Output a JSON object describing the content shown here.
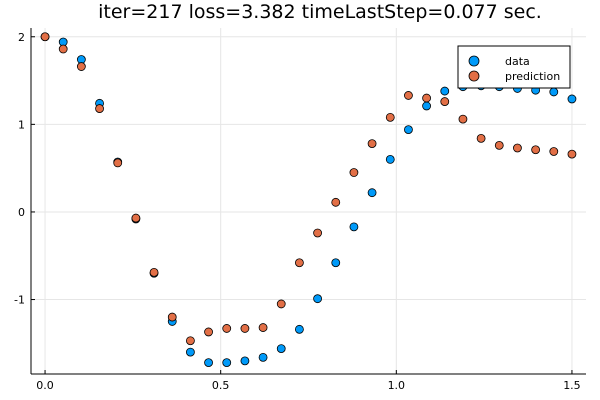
{
  "chart_data": {
    "type": "scatter",
    "title": "iter=217  loss=3.382 timeLastStep=0.077 sec.",
    "xlabel": "",
    "ylabel": "",
    "xlim": [
      -0.04,
      1.54
    ],
    "ylim": [
      -1.85,
      2.1
    ],
    "xticks": [
      0.0,
      0.5,
      1.0,
      1.5
    ],
    "xtick_labels": [
      "0.0",
      "0.5",
      "1.0",
      "1.5"
    ],
    "yticks": [
      2,
      1,
      0,
      -1
    ],
    "ytick_labels": [
      "2",
      "1",
      "0",
      "-1"
    ],
    "grid": true,
    "legend_position": "top-right",
    "x": [
      0.0,
      0.0517,
      0.1034,
      0.1552,
      0.2069,
      0.2586,
      0.3103,
      0.3621,
      0.4138,
      0.4655,
      0.5172,
      0.569,
      0.6207,
      0.6724,
      0.7241,
      0.7759,
      0.8276,
      0.8793,
      0.931,
      0.9828,
      1.0345,
      1.0862,
      1.1379,
      1.1897,
      1.2414,
      1.2931,
      1.3448,
      1.3966,
      1.4483,
      1.5
    ],
    "series": [
      {
        "name": "data",
        "color": "#009af9",
        "values": [
          2.0,
          1.94,
          1.74,
          1.24,
          0.57,
          -0.08,
          -0.7,
          -1.25,
          -1.6,
          -1.72,
          -1.72,
          -1.7,
          -1.66,
          -1.56,
          -1.34,
          -0.99,
          -0.58,
          -0.17,
          0.22,
          0.6,
          0.94,
          1.21,
          1.38,
          1.43,
          1.44,
          1.43,
          1.41,
          1.39,
          1.37,
          1.29
        ]
      },
      {
        "name": "prediction",
        "color": "#e26f46",
        "values": [
          2.0,
          1.86,
          1.66,
          1.18,
          0.56,
          -0.07,
          -0.69,
          -1.2,
          -1.47,
          -1.37,
          -1.33,
          -1.33,
          -1.32,
          -1.05,
          -0.58,
          -0.24,
          0.11,
          0.45,
          0.78,
          1.08,
          1.33,
          1.3,
          1.26,
          1.06,
          0.84,
          0.76,
          0.73,
          0.71,
          0.69,
          0.66
        ]
      }
    ]
  }
}
